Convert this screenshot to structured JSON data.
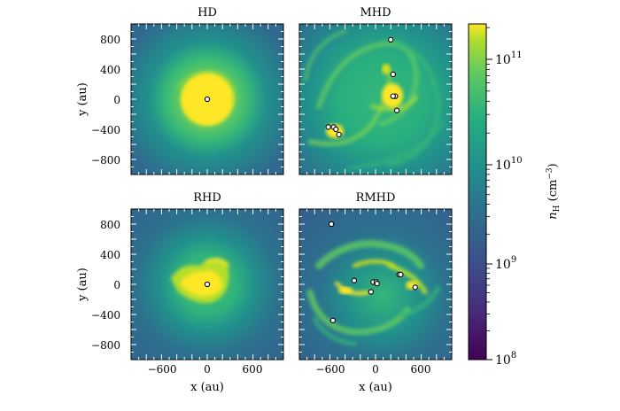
{
  "figure": {
    "panels": [
      {
        "id": "hd",
        "title": "HD"
      },
      {
        "id": "mhd",
        "title": "MHD"
      },
      {
        "id": "rhd",
        "title": "RHD"
      },
      {
        "id": "rmhd",
        "title": "RMHD"
      }
    ],
    "y_label": "y (au)",
    "x_label": "x (au)",
    "y_ticks": [
      "800",
      "400",
      "0",
      "−400",
      "−800"
    ],
    "x_ticks": [
      "−600",
      "0",
      "600"
    ],
    "colorbar": {
      "label_base": "n",
      "label_sub": "H",
      "label_unit": " (cm",
      "label_unit_sup": "−3",
      "label_close": ")",
      "scale": "log",
      "range": [
        100000000,
        300000000000
      ],
      "ticks": [
        {
          "base": "10",
          "exp": "11"
        },
        {
          "base": "10",
          "exp": "10"
        },
        {
          "base": "10",
          "exp": "9"
        },
        {
          "base": "10",
          "exp": "8"
        }
      ],
      "colormap": "viridis"
    },
    "sinks": {
      "hd": [
        [
          0,
          0
        ]
      ],
      "mhd": [
        [
          200,
          790
        ],
        [
          230,
          330
        ],
        [
          260,
          40
        ],
        [
          230,
          40
        ],
        [
          280,
          -150
        ],
        [
          -620,
          -370
        ],
        [
          -550,
          -370
        ],
        [
          -520,
          -400
        ],
        [
          -480,
          -470
        ]
      ],
      "rhd": [
        [
          0,
          0
        ]
      ],
      "rmhd": [
        [
          -580,
          800
        ],
        [
          -280,
          50
        ],
        [
          -30,
          30
        ],
        [
          10,
          30
        ],
        [
          20,
          10
        ],
        [
          -60,
          -100
        ],
        [
          310,
          130
        ],
        [
          330,
          130
        ],
        [
          520,
          -40
        ],
        [
          -560,
          -480
        ]
      ]
    },
    "colors": {
      "dark": "#440154",
      "mid_blue": "#2c728e",
      "teal": "#21918c",
      "green": "#5ec962",
      "yellow": "#fde725"
    }
  }
}
